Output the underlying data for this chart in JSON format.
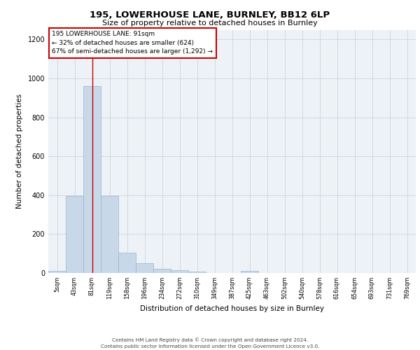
{
  "title1": "195, LOWERHOUSE LANE, BURNLEY, BB12 6LP",
  "title2": "Size of property relative to detached houses in Burnley",
  "xlabel": "Distribution of detached houses by size in Burnley",
  "ylabel": "Number of detached properties",
  "categories": [
    "5sqm",
    "43sqm",
    "81sqm",
    "119sqm",
    "158sqm",
    "196sqm",
    "234sqm",
    "272sqm",
    "310sqm",
    "349sqm",
    "387sqm",
    "425sqm",
    "463sqm",
    "502sqm",
    "540sqm",
    "578sqm",
    "616sqm",
    "654sqm",
    "693sqm",
    "731sqm",
    "769sqm"
  ],
  "values": [
    10,
    395,
    960,
    395,
    105,
    50,
    20,
    15,
    8,
    0,
    0,
    10,
    0,
    0,
    0,
    0,
    0,
    0,
    0,
    0,
    0
  ],
  "bar_color": "#c8d8e8",
  "bar_edgecolor": "#9ab4cc",
  "bar_linewidth": 0.5,
  "grid_color": "#d0d8e0",
  "bg_color": "#edf2f7",
  "red_line_x": 2,
  "annotation_text": "195 LOWERHOUSE LANE: 91sqm\n← 32% of detached houses are smaller (624)\n67% of semi-detached houses are larger (1,292) →",
  "annotation_box_color": "#ffffff",
  "annotation_box_edgecolor": "#cc0000",
  "ylim": [
    0,
    1250
  ],
  "yticks": [
    0,
    200,
    400,
    600,
    800,
    1000,
    1200
  ],
  "footer1": "Contains HM Land Registry data © Crown copyright and database right 2024.",
  "footer2": "Contains public sector information licensed under the Open Government Licence v3.0."
}
